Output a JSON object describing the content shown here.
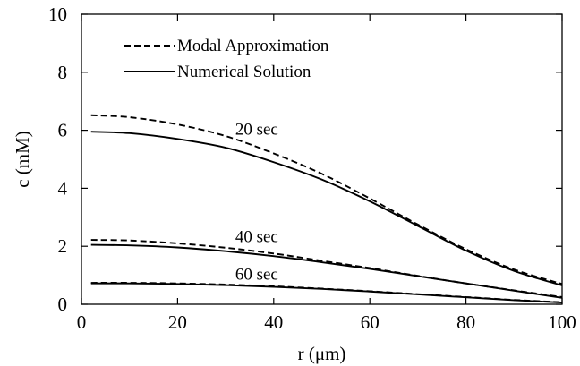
{
  "chart_data": {
    "type": "line",
    "xlabel": "r (μm)",
    "ylabel": "c (mM)",
    "xlim": [
      0,
      100
    ],
    "ylim": [
      0,
      10
    ],
    "xticks": [
      0,
      20,
      40,
      60,
      80,
      100
    ],
    "yticks": [
      0,
      2,
      4,
      6,
      8,
      10
    ],
    "grid": false,
    "legend_position": "top-left",
    "legend": [
      {
        "label": "Modal Approximation",
        "style": "dashed"
      },
      {
        "label": "Numerical Solution",
        "style": "solid"
      }
    ],
    "annotations": [
      {
        "text": "20 sec",
        "x": 32,
        "y": 5.85
      },
      {
        "text": "40 sec",
        "x": 32,
        "y": 2.15
      },
      {
        "text": "60 sec",
        "x": 32,
        "y": 0.85
      }
    ],
    "series": [
      {
        "name": "Modal Approximation",
        "time": "20 sec",
        "style": "dashed",
        "x": [
          2,
          10,
          20,
          30,
          40,
          50,
          60,
          70,
          80,
          90,
          100
        ],
        "y": [
          6.52,
          6.45,
          6.2,
          5.8,
          5.2,
          4.5,
          3.65,
          2.75,
          1.9,
          1.2,
          0.7
        ]
      },
      {
        "name": "Numerical Solution",
        "time": "20 sec",
        "style": "solid",
        "x": [
          2,
          10,
          20,
          30,
          40,
          50,
          60,
          70,
          80,
          90,
          100
        ],
        "y": [
          5.95,
          5.9,
          5.7,
          5.4,
          4.9,
          4.3,
          3.55,
          2.7,
          1.85,
          1.15,
          0.65
        ]
      },
      {
        "name": "Modal Approximation",
        "time": "40 sec",
        "style": "dashed",
        "x": [
          2,
          10,
          20,
          30,
          40,
          50,
          60,
          70,
          80,
          90,
          100
        ],
        "y": [
          2.22,
          2.2,
          2.1,
          1.95,
          1.75,
          1.5,
          1.25,
          0.98,
          0.72,
          0.48,
          0.25
        ]
      },
      {
        "name": "Numerical Solution",
        "time": "40 sec",
        "style": "solid",
        "x": [
          2,
          10,
          20,
          30,
          40,
          50,
          60,
          70,
          80,
          90,
          100
        ],
        "y": [
          2.05,
          2.03,
          1.96,
          1.83,
          1.66,
          1.45,
          1.22,
          0.97,
          0.72,
          0.47,
          0.22
        ]
      },
      {
        "name": "Modal Approximation",
        "time": "60 sec",
        "style": "dashed",
        "x": [
          2,
          10,
          20,
          30,
          40,
          50,
          60,
          70,
          80,
          90,
          100
        ],
        "y": [
          0.74,
          0.74,
          0.72,
          0.68,
          0.62,
          0.54,
          0.45,
          0.35,
          0.25,
          0.15,
          0.07
        ]
      },
      {
        "name": "Numerical Solution",
        "time": "60 sec",
        "style": "solid",
        "x": [
          2,
          10,
          20,
          30,
          40,
          50,
          60,
          70,
          80,
          90,
          100
        ],
        "y": [
          0.72,
          0.72,
          0.7,
          0.66,
          0.6,
          0.53,
          0.44,
          0.34,
          0.24,
          0.14,
          0.06
        ]
      }
    ]
  }
}
